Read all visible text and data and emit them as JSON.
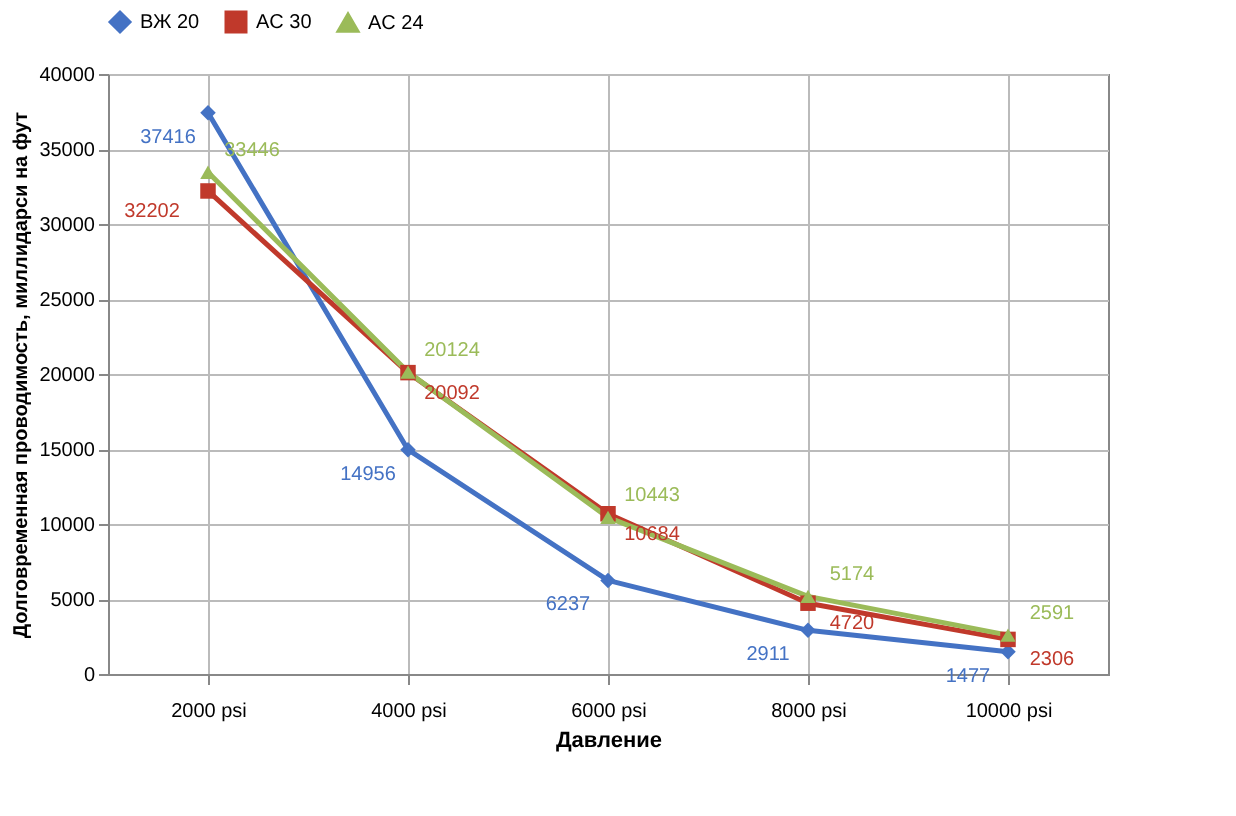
{
  "chart_data": {
    "type": "line",
    "xlabel": "Давление",
    "ylabel": "Долговременная проводимость, миллидарси на фут",
    "categories": [
      "2000 psi",
      "4000 psi",
      "6000 psi",
      "8000 psi",
      "10000 psi"
    ],
    "series": [
      {
        "name": "ВЖ 20",
        "color": "#4472c4",
        "marker": "diamond",
        "values": [
          37416,
          14956,
          6237,
          2911,
          1477
        ]
      },
      {
        "name": "AC 30",
        "color": "#c0392b",
        "marker": "square",
        "values": [
          32202,
          20092,
          10684,
          4720,
          2306
        ]
      },
      {
        "name": "AC 24",
        "color": "#9bbb59",
        "marker": "triangle",
        "values": [
          33446,
          20124,
          10443,
          5174,
          2591
        ]
      }
    ],
    "ylim": [
      0,
      40000
    ],
    "yticks": [
      0,
      5000,
      10000,
      15000,
      20000,
      25000,
      30000,
      35000,
      40000
    ],
    "grid": true,
    "legend": "top",
    "data_labels": true,
    "line_style": "solid"
  }
}
